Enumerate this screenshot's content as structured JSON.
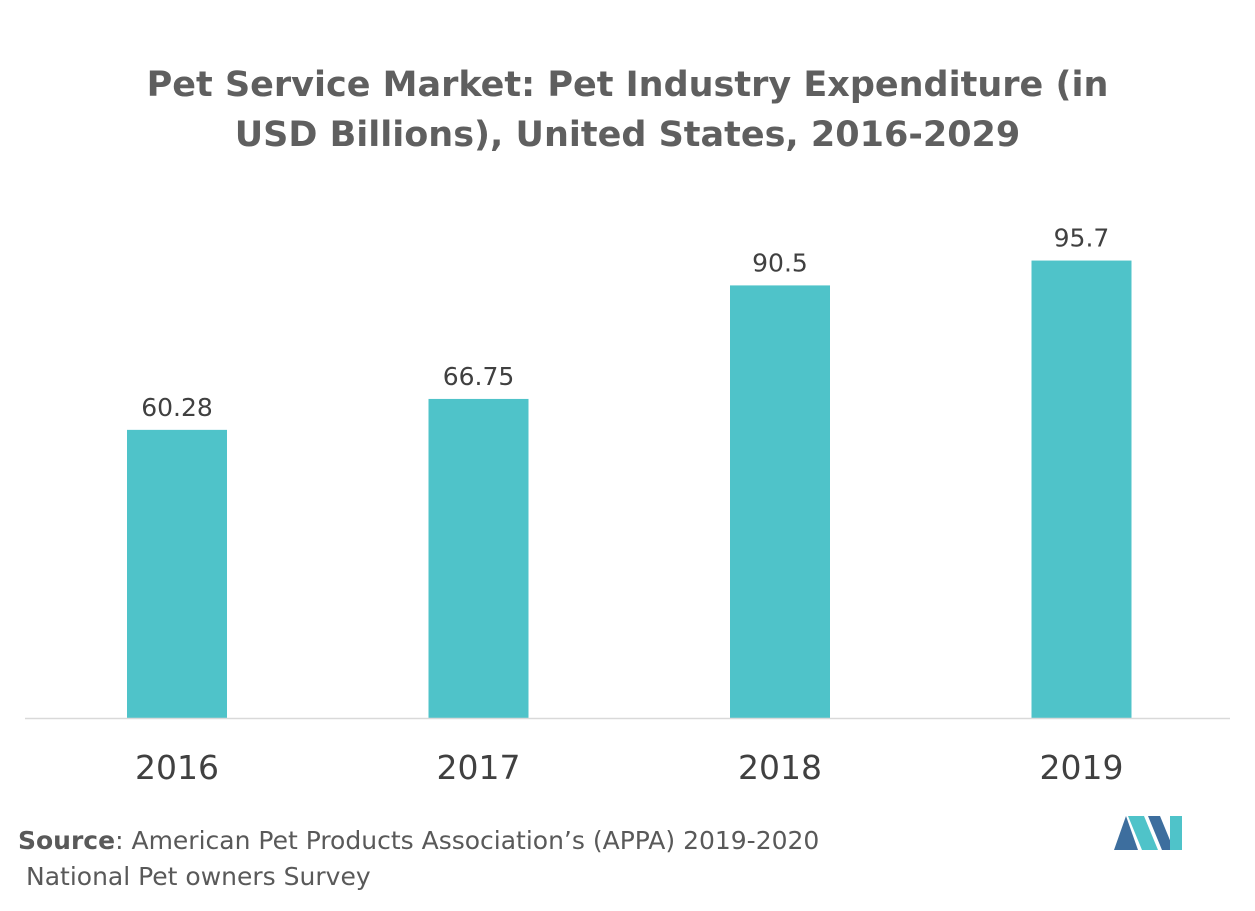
{
  "chart_data": {
    "type": "bar",
    "title_lines": [
      "Pet Service Market: Pet Industry Expenditure (in",
      "USD Billions), United States, 2016-2029"
    ],
    "categories": [
      "2016",
      "2017",
      "2018",
      "2019"
    ],
    "values": [
      60.28,
      66.75,
      90.5,
      95.7
    ],
    "data_labels": [
      "60.28",
      "66.75",
      "90.5",
      "95.7"
    ],
    "xlabel": "",
    "ylabel": "",
    "ylim": [
      0,
      100
    ],
    "grid": false,
    "legend": "none",
    "bar_color": "#4fc3c9"
  },
  "source": {
    "label": "Source",
    "text_line1": ": American Pet Products Association’s (APPA) 2019-2020",
    "text_line2": "National Pet owners Survey"
  },
  "colors": {
    "title": "#5f5f5f",
    "axis": "#d9d9d9",
    "label": "#404040",
    "logo_dark": "#3d6e9e",
    "logo_light": "#4fc3c9"
  },
  "logo": {
    "icon": "mordor-logo-icon"
  }
}
